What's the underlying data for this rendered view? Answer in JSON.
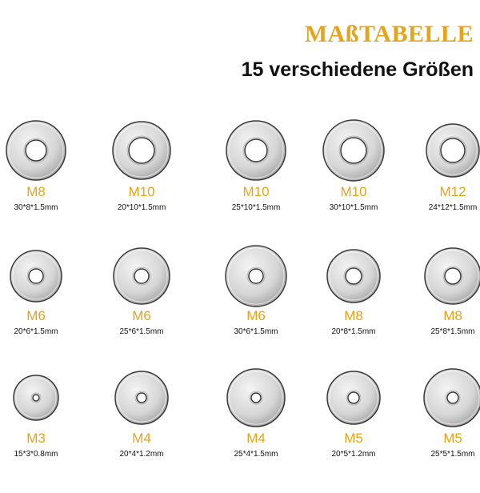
{
  "header": {
    "title": "MAßTABELLE",
    "subtitle": "15 verschiedene Größen"
  },
  "colors": {
    "accent": "#e8a317",
    "text": "#111111",
    "washer_light": "#f4f4f4",
    "washer_dark": "#9a9a9a",
    "washer_edge": "#3a3a3a"
  },
  "washers": [
    {
      "size": "M8",
      "dims": "30*8*1.5mm"
    },
    {
      "size": "M10",
      "dims": "20*10*1.5mm"
    },
    {
      "size": "M10",
      "dims": "25*10*1.5mm"
    },
    {
      "size": "M10",
      "dims": "30*10*1.5mm"
    },
    {
      "size": "M12",
      "dims": "24*12*1.5mm"
    },
    {
      "size": "M6",
      "dims": "20*6*1.5mm"
    },
    {
      "size": "M6",
      "dims": "25*6*1.5mm"
    },
    {
      "size": "M6",
      "dims": "30*6*1.5mm"
    },
    {
      "size": "M8",
      "dims": "20*8*1.5mm"
    },
    {
      "size": "M8",
      "dims": "25*8*1.5mm"
    },
    {
      "size": "M3",
      "dims": "15*3*0.8mm"
    },
    {
      "size": "M4",
      "dims": "20*4*1.2mm"
    },
    {
      "size": "M4",
      "dims": "25*4*1.5mm"
    },
    {
      "size": "M5",
      "dims": "20*5*1.2mm"
    },
    {
      "size": "M5",
      "dims": "25*5*1.5mm"
    }
  ]
}
